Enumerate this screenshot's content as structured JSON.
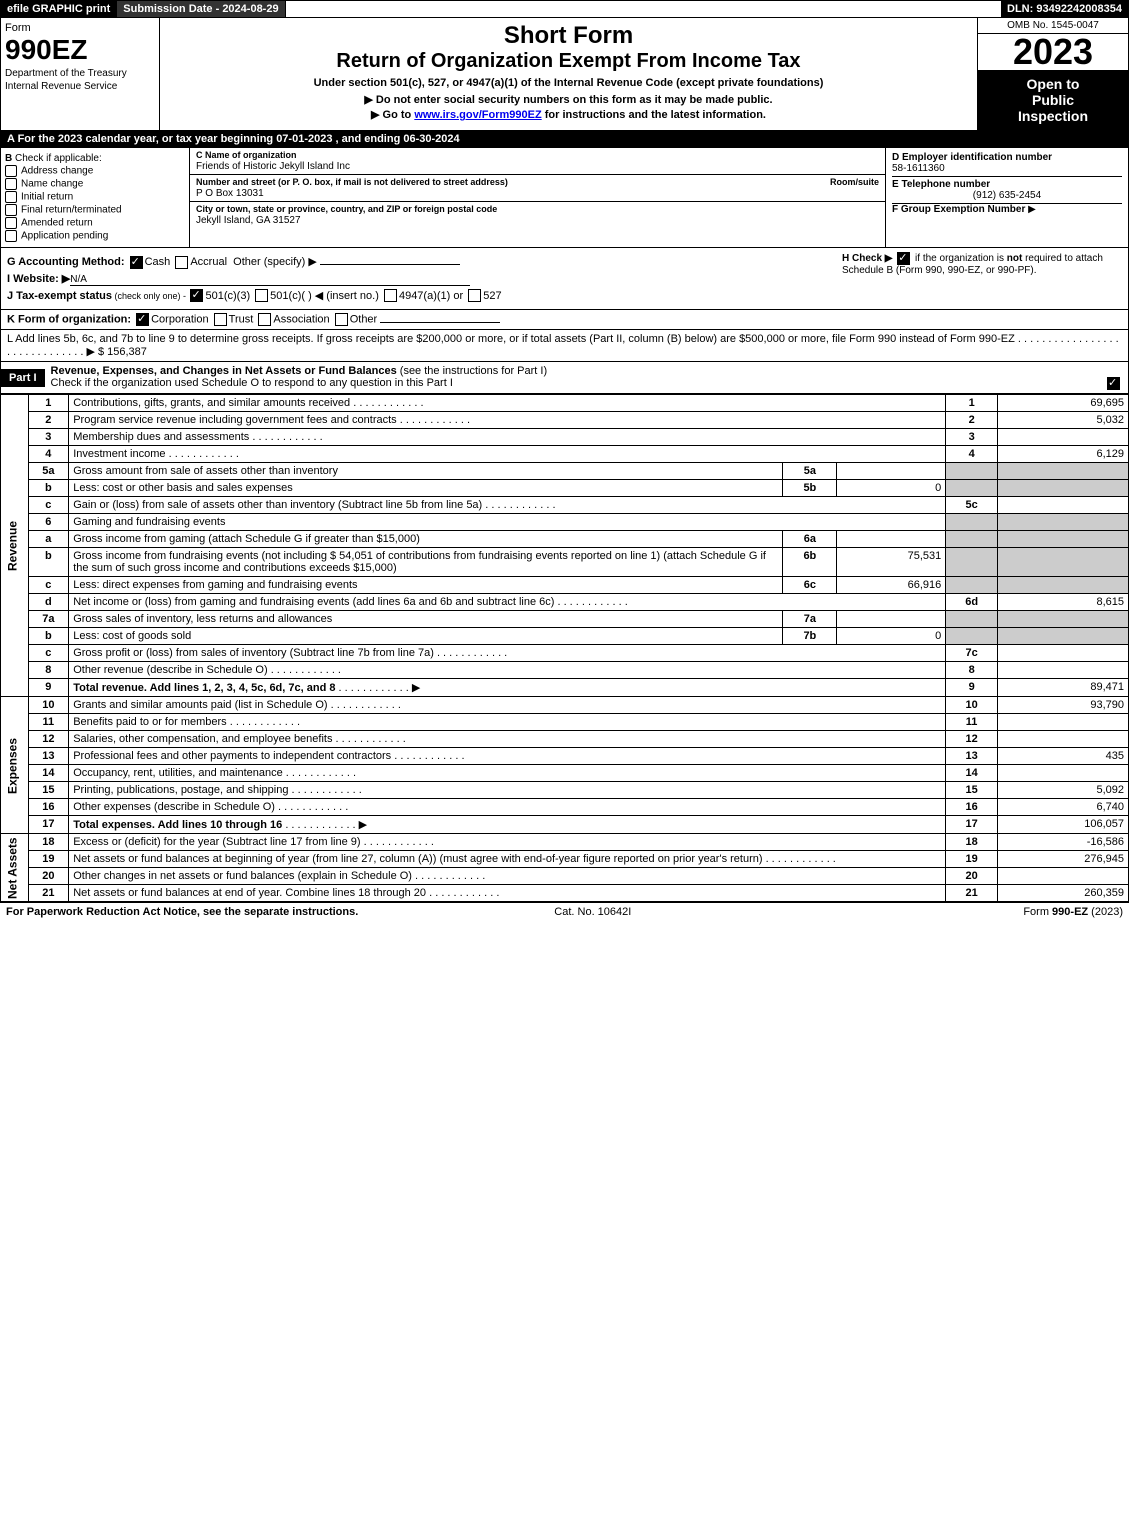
{
  "topbar": {
    "efile": "efile GRAPHIC print",
    "sub_label": "Submission Date - 2024-08-29",
    "dln": "DLN: 93492242008354"
  },
  "header": {
    "form_word": "Form",
    "form_num": "990EZ",
    "dept": "Department of the Treasury",
    "irs": "Internal Revenue Service",
    "short": "Short Form",
    "title": "Return of Organization Exempt From Income Tax",
    "under": "Under section 501(c), 527, or 4947(a)(1) of the Internal Revenue Code (except private foundations)",
    "note1": "▶ Do not enter social security numbers on this form as it may be made public.",
    "note2": "▶ Go to ",
    "note2_link": "www.irs.gov/Form990EZ",
    "note2_after": " for instructions and the latest information.",
    "omb": "OMB No. 1545-0047",
    "year": "2023",
    "open1": "Open to",
    "open2": "Public",
    "open3": "Inspection"
  },
  "secA": "A  For the 2023 calendar year, or tax year beginning 07-01-2023 , and ending 06-30-2024",
  "boxB": {
    "title": "B",
    "subtitle": "Check if applicable:",
    "items": [
      "Address change",
      "Name change",
      "Initial return",
      "Final return/terminated",
      "Amended return",
      "Application pending"
    ]
  },
  "boxC": {
    "c_lbl": "C Name of organization",
    "c_val": "Friends of Historic Jekyll Island Inc",
    "addr_lbl": "Number and street (or P. O. box, if mail is not delivered to street address)",
    "addr_val": "P O Box 13031",
    "room": "Room/suite",
    "city_lbl": "City or town, state or province, country, and ZIP or foreign postal code",
    "city_val": "Jekyll Island, GA  31527"
  },
  "boxD": {
    "d_lbl": "D Employer identification number",
    "d_val": "58-1611360",
    "e_lbl": "E Telephone number",
    "e_val": "(912) 635-2454",
    "f_lbl": "F Group Exemption Number",
    "f_arrow": "▶"
  },
  "ghij": {
    "g": "G Accounting Method:",
    "g_cash": "Cash",
    "g_accr": "Accrual",
    "g_other": "Other (specify) ▶",
    "h": "H  Check ▶",
    "h_txt": " if the organization is ",
    "h_not": "not",
    "h_txt2": " required to attach Schedule B (Form 990, 990-EZ, or 990-PF).",
    "i": "I Website: ▶",
    "i_val": "N/A",
    "j": "J Tax-exempt status",
    "j_note": " (check only one) - ",
    "j1": "501(c)(3)",
    "j2": "501(c)(  ) ◀ (insert no.)",
    "j3": "4947(a)(1) or",
    "j4": "527"
  },
  "K": "K Form of organization:",
  "k_items": [
    "Corporation",
    "Trust",
    "Association",
    "Other"
  ],
  "L": "L Add lines 5b, 6c, and 7b to line 9 to determine gross receipts. If gross receipts are $200,000 or more, or if total assets (Part II, column (B) below) are $500,000 or more, file Form 990 instead of Form 990-EZ  .  .  .  .  .  .  .  .  .  .  .  .  .  .  .  .  .  .  .  .  .  .  .  .  .  .  .  .  .  .  ▶ $ 156,387",
  "part1": {
    "label": "Part I",
    "title": "Revenue, Expenses, and Changes in Net Assets or Fund Balances",
    "note": " (see the instructions for Part I)",
    "check": "Check if the organization used Schedule O to respond to any question in this Part I"
  },
  "rev": {
    "section": "Revenue",
    "rows": [
      {
        "n": "1",
        "t": "Contributions, gifts, grants, and similar amounts received",
        "rn": "1",
        "v": "69,695"
      },
      {
        "n": "2",
        "t": "Program service revenue including government fees and contracts",
        "rn": "2",
        "v": "5,032"
      },
      {
        "n": "3",
        "t": "Membership dues and assessments",
        "rn": "3",
        "v": ""
      },
      {
        "n": "4",
        "t": "Investment income",
        "rn": "4",
        "v": "6,129"
      },
      {
        "n": "5a",
        "t": "Gross amount from sale of assets other than inventory",
        "mid": "5a",
        "midv": ""
      },
      {
        "n": "b",
        "t": "Less: cost or other basis and sales expenses",
        "mid": "5b",
        "midv": "0"
      },
      {
        "n": "c",
        "t": "Gain or (loss) from sale of assets other than inventory (Subtract line 5b from line 5a)",
        "rn": "5c",
        "v": ""
      },
      {
        "n": "6",
        "t": "Gaming and fundraising events"
      },
      {
        "n": "a",
        "t": "Gross income from gaming (attach Schedule G if greater than $15,000)",
        "mid": "6a",
        "midv": ""
      },
      {
        "n": "b",
        "t": "Gross income from fundraising events (not including $  54,051         of contributions from fundraising events reported on line 1) (attach Schedule G if the sum of such gross income and contributions exceeds $15,000)",
        "mid": "6b",
        "midv": "75,531"
      },
      {
        "n": "c",
        "t": "Less: direct expenses from gaming and fundraising events",
        "mid": "6c",
        "midv": "66,916"
      },
      {
        "n": "d",
        "t": "Net income or (loss) from gaming and fundraising events (add lines 6a and 6b and subtract line 6c)",
        "rn": "6d",
        "v": "8,615"
      },
      {
        "n": "7a",
        "t": "Gross sales of inventory, less returns and allowances",
        "mid": "7a",
        "midv": ""
      },
      {
        "n": "b",
        "t": "Less: cost of goods sold",
        "mid": "7b",
        "midv": "0"
      },
      {
        "n": "c",
        "t": "Gross profit or (loss) from sales of inventory (Subtract line 7b from line 7a)",
        "rn": "7c",
        "v": ""
      },
      {
        "n": "8",
        "t": "Other revenue (describe in Schedule O)",
        "rn": "8",
        "v": ""
      },
      {
        "n": "9",
        "t": "Total revenue. Add lines 1, 2, 3, 4, 5c, 6d, 7c, and 8",
        "rn": "9",
        "v": "89,471",
        "bold": true
      }
    ]
  },
  "exp": {
    "section": "Expenses",
    "rows": [
      {
        "n": "10",
        "t": "Grants and similar amounts paid (list in Schedule O)",
        "rn": "10",
        "v": "93,790"
      },
      {
        "n": "11",
        "t": "Benefits paid to or for members",
        "rn": "11",
        "v": ""
      },
      {
        "n": "12",
        "t": "Salaries, other compensation, and employee benefits",
        "rn": "12",
        "v": ""
      },
      {
        "n": "13",
        "t": "Professional fees and other payments to independent contractors",
        "rn": "13",
        "v": "435"
      },
      {
        "n": "14",
        "t": "Occupancy, rent, utilities, and maintenance",
        "rn": "14",
        "v": ""
      },
      {
        "n": "15",
        "t": "Printing, publications, postage, and shipping",
        "rn": "15",
        "v": "5,092"
      },
      {
        "n": "16",
        "t": "Other expenses (describe in Schedule O)",
        "rn": "16",
        "v": "6,740"
      },
      {
        "n": "17",
        "t": "Total expenses. Add lines 10 through 16",
        "rn": "17",
        "v": "106,057",
        "bold": true
      }
    ]
  },
  "net": {
    "section": "Net Assets",
    "rows": [
      {
        "n": "18",
        "t": "Excess or (deficit) for the year (Subtract line 17 from line 9)",
        "rn": "18",
        "v": "-16,586"
      },
      {
        "n": "19",
        "t": "Net assets or fund balances at beginning of year (from line 27, column (A)) (must agree with end-of-year figure reported on prior year's return)",
        "rn": "19",
        "v": "276,945"
      },
      {
        "n": "20",
        "t": "Other changes in net assets or fund balances (explain in Schedule O)",
        "rn": "20",
        "v": ""
      },
      {
        "n": "21",
        "t": "Net assets or fund balances at end of year. Combine lines 18 through 20",
        "rn": "21",
        "v": "260,359"
      }
    ]
  },
  "footer": {
    "left": "For Paperwork Reduction Act Notice, see the separate instructions.",
    "mid": "Cat. No. 10642I",
    "right": "Form 990-EZ (2023)"
  }
}
